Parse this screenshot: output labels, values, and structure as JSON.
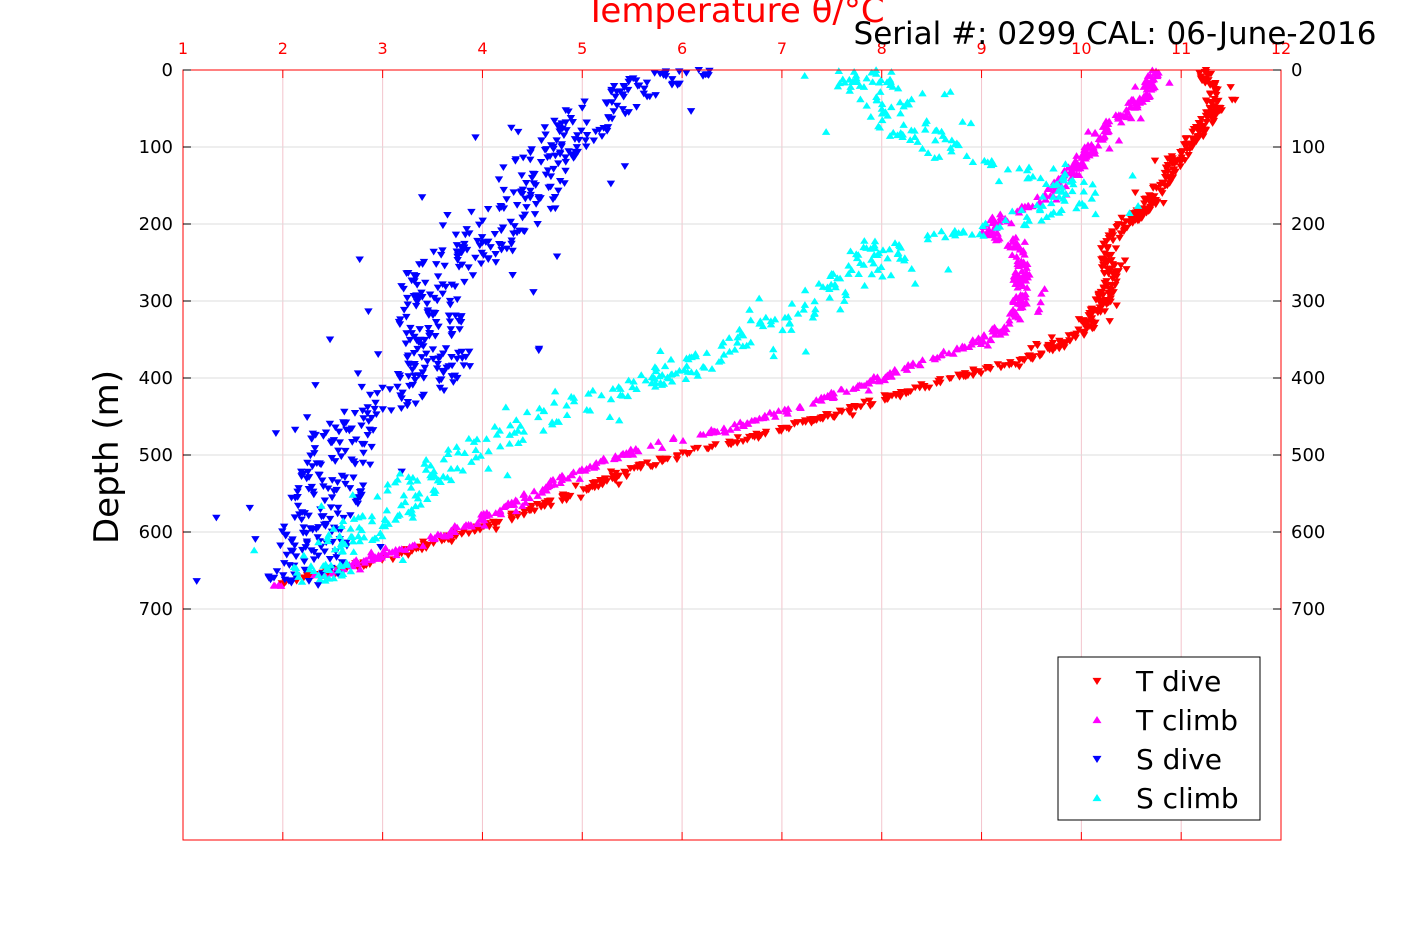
{
  "chart_data": {
    "type": "scatter",
    "title": "Temperature θ/°C",
    "title_color": "#ff0000",
    "subtitle": "Serial #: 0299 CAL: 06-June-2016",
    "xlabel": "Temperature θ/°C",
    "ylabel": "Depth (m)",
    "xlim": [
      1,
      12
    ],
    "ylim": [
      0,
      1000
    ],
    "y_reversed": true,
    "x_ticks": [
      "1",
      "2",
      "3",
      "4",
      "5",
      "6",
      "7",
      "8",
      "9",
      "10",
      "11",
      "12"
    ],
    "y_ticks": [
      "0",
      "100",
      "200",
      "300",
      "400",
      "500",
      "600",
      "700"
    ],
    "y_tick_values": [
      0,
      100,
      200,
      300,
      400,
      500,
      600,
      700
    ],
    "x_axis_position": "top",
    "grid": true,
    "legend_position": "bottom-right",
    "series": [
      {
        "name": "T dive",
        "color": "#ff0000",
        "marker": "triangle-down",
        "profile": [
          [
            11.25,
            0
          ],
          [
            11.3,
            25
          ],
          [
            11.35,
            50
          ],
          [
            11.2,
            75
          ],
          [
            11.0,
            110
          ],
          [
            10.8,
            150
          ],
          [
            10.6,
            185
          ],
          [
            10.35,
            210
          ],
          [
            10.25,
            240
          ],
          [
            10.3,
            270
          ],
          [
            10.2,
            305
          ],
          [
            10.0,
            340
          ],
          [
            9.6,
            370
          ],
          [
            9.0,
            390
          ],
          [
            8.3,
            415
          ],
          [
            7.6,
            445
          ],
          [
            6.6,
            480
          ],
          [
            5.7,
            510
          ],
          [
            5.0,
            545
          ],
          [
            4.3,
            580
          ],
          [
            3.5,
            615
          ],
          [
            2.7,
            645
          ],
          [
            2.2,
            660
          ],
          [
            1.85,
            672
          ]
        ]
      },
      {
        "name": "T climb",
        "color": "#ff00ff",
        "marker": "triangle-up",
        "profile": [
          [
            10.75,
            0
          ],
          [
            10.7,
            25
          ],
          [
            10.5,
            50
          ],
          [
            10.2,
            80
          ],
          [
            10.05,
            110
          ],
          [
            9.85,
            140
          ],
          [
            9.6,
            170
          ],
          [
            9.2,
            190
          ],
          [
            9.05,
            205
          ],
          [
            9.35,
            230
          ],
          [
            9.4,
            260
          ],
          [
            9.4,
            290
          ],
          [
            9.35,
            320
          ],
          [
            9.1,
            345
          ],
          [
            8.6,
            370
          ],
          [
            7.9,
            405
          ],
          [
            7.2,
            435
          ],
          [
            6.5,
            465
          ],
          [
            5.6,
            490
          ],
          [
            4.9,
            525
          ],
          [
            4.3,
            565
          ],
          [
            3.7,
            600
          ],
          [
            3.0,
            630
          ],
          [
            2.4,
            655
          ],
          [
            1.9,
            672
          ]
        ]
      },
      {
        "name": "S dive",
        "color": "#0000ff",
        "marker": "triangle-down",
        "profile": [
          [
            6.1,
            0
          ],
          [
            5.6,
            20
          ],
          [
            5.2,
            50
          ],
          [
            4.9,
            80
          ],
          [
            4.6,
            110
          ],
          [
            4.5,
            140
          ],
          [
            4.4,
            170
          ],
          [
            4.2,
            200
          ],
          [
            3.9,
            230
          ],
          [
            3.6,
            260
          ],
          [
            3.5,
            290
          ],
          [
            3.5,
            320
          ],
          [
            3.5,
            350
          ],
          [
            3.6,
            380
          ],
          [
            3.3,
            415
          ],
          [
            2.9,
            440
          ],
          [
            2.6,
            470
          ],
          [
            2.55,
            510
          ],
          [
            2.45,
            550
          ],
          [
            2.35,
            580
          ],
          [
            2.3,
            620
          ],
          [
            2.25,
            650
          ],
          [
            2.0,
            670
          ]
        ]
      },
      {
        "name": "S climb",
        "color": "#00ffff",
        "marker": "triangle-up",
        "profile": [
          [
            7.8,
            0
          ],
          [
            7.85,
            20
          ],
          [
            8.1,
            50
          ],
          [
            8.3,
            80
          ],
          [
            8.7,
            110
          ],
          [
            9.6,
            130
          ],
          [
            10.0,
            155
          ],
          [
            9.7,
            180
          ],
          [
            9.2,
            205
          ],
          [
            7.9,
            225
          ],
          [
            8.0,
            250
          ],
          [
            7.6,
            280
          ],
          [
            7.2,
            310
          ],
          [
            6.8,
            340
          ],
          [
            6.3,
            370
          ],
          [
            5.9,
            395
          ],
          [
            5.3,
            420
          ],
          [
            4.8,
            440
          ],
          [
            4.3,
            470
          ],
          [
            3.9,
            495
          ],
          [
            3.5,
            520
          ],
          [
            3.2,
            555
          ],
          [
            2.8,
            595
          ],
          [
            2.5,
            630
          ],
          [
            2.3,
            665
          ]
        ]
      }
    ]
  }
}
